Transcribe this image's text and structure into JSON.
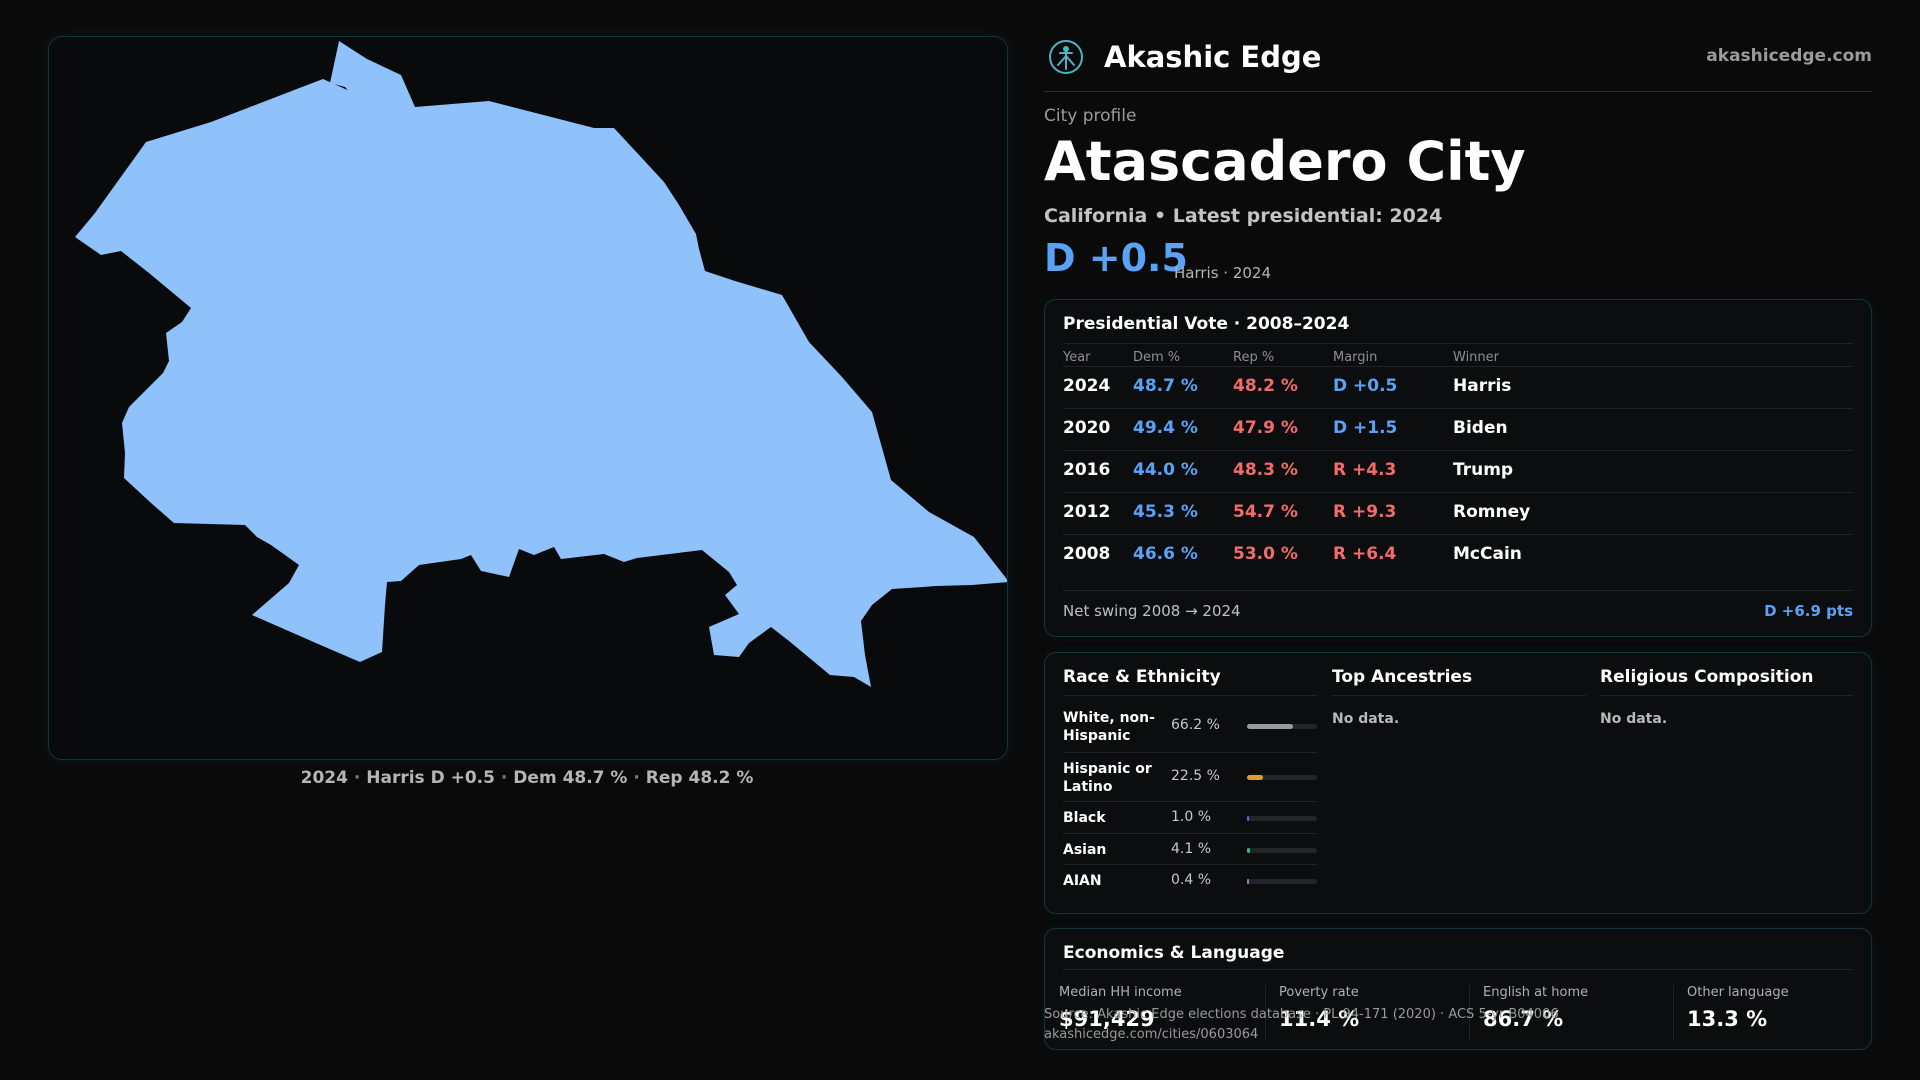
{
  "map": {
    "caption": {
      "year": "2024",
      "candidate_margin": "Harris D +0.5",
      "dem": "Dem 48.7 %",
      "rep": "Rep 48.2 %",
      "separator": "·"
    },
    "fill_color": "#8fc1fb"
  },
  "brand": {
    "name": "Akashic Edge",
    "url": "akashicedge.com"
  },
  "profile": {
    "eyebrow": "City profile",
    "title": "Atascadero City",
    "subtitle": "California • Latest presidential: 2024",
    "margin": "D +0.5",
    "margin_note": "Harris · 2024"
  },
  "presidential": {
    "title": "Presidential Vote · 2008–2024",
    "headers": [
      "Year",
      "Dem %",
      "Rep %",
      "Margin",
      "Winner"
    ],
    "rows": [
      {
        "year": "2024",
        "dem": "48.7 %",
        "rep": "48.2 %",
        "margin": "D +0.5",
        "party": "D",
        "winner": "Harris"
      },
      {
        "year": "2020",
        "dem": "49.4 %",
        "rep": "47.9 %",
        "margin": "D +1.5",
        "party": "D",
        "winner": "Biden"
      },
      {
        "year": "2016",
        "dem": "44.0 %",
        "rep": "48.3 %",
        "margin": "R +4.3",
        "party": "R",
        "winner": "Trump"
      },
      {
        "year": "2012",
        "dem": "45.3 %",
        "rep": "54.7 %",
        "margin": "R +9.3",
        "party": "R",
        "winner": "Romney"
      },
      {
        "year": "2008",
        "dem": "46.6 %",
        "rep": "53.0 %",
        "margin": "R +6.4",
        "party": "R",
        "winner": "McCain"
      }
    ],
    "net_swing_label": "Net swing 2008 → 2024",
    "net_swing_value": "D +6.9 pts"
  },
  "race": {
    "title": "Race & Ethnicity",
    "rows": [
      {
        "label": "White, non-Hispanic",
        "value": "66.2 %",
        "fraction": 0.662,
        "color": "#9a9a9a"
      },
      {
        "label": "Hispanic or Latino",
        "value": "22.5 %",
        "fraction": 0.225,
        "color": "#e59a2c"
      },
      {
        "label": "Black",
        "value": "1.0 %",
        "fraction": 0.01,
        "color": "#5b6cd6"
      },
      {
        "label": "Asian",
        "value": "4.1 %",
        "fraction": 0.041,
        "color": "#2fbf71"
      },
      {
        "label": "AIAN",
        "value": "0.4 %",
        "fraction": 0.004,
        "color": "#b46fd6"
      }
    ]
  },
  "ancestries": {
    "title": "Top Ancestries",
    "empty": "No data."
  },
  "religion": {
    "title": "Religious Composition",
    "empty": "No data."
  },
  "economics": {
    "title": "Economics & Language",
    "cells": [
      {
        "label": "Median HH income",
        "value": "$91,429"
      },
      {
        "label": "Poverty rate",
        "value": "11.4 %"
      },
      {
        "label": "English at home",
        "value": "86.7 %"
      },
      {
        "label": "Other language",
        "value": "13.3 %"
      }
    ]
  },
  "footer": {
    "source": "Source: Akashic Edge elections database · PL 94-171 (2020) · ACS 5-yr B04006",
    "link": "akashicedge.com/cities/0603064"
  }
}
